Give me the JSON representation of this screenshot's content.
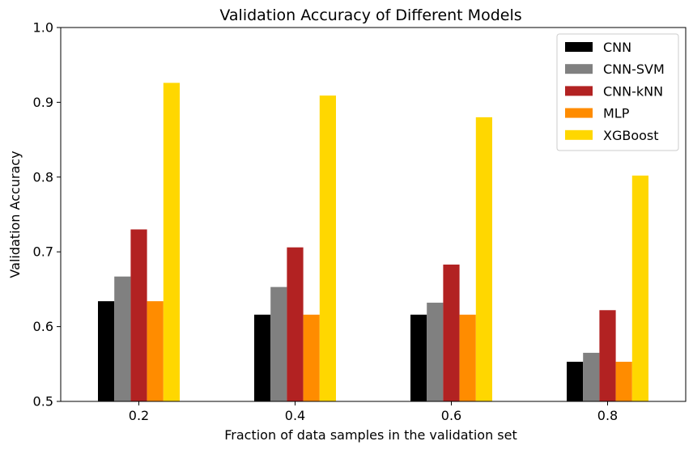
{
  "chart_data": {
    "type": "bar",
    "title": "Validation Accuracy of Different Models",
    "xlabel": "Fraction of data samples in the validation set",
    "ylabel": "Validation Accuracy",
    "categories": [
      "0.2",
      "0.4",
      "0.6",
      "0.8"
    ],
    "ylim": [
      0.5,
      1.0
    ],
    "yticks": [
      "0.5",
      "0.6",
      "0.7",
      "0.8",
      "0.9",
      "1.0"
    ],
    "grid": false,
    "legend_position": "top-right",
    "series": [
      {
        "name": "CNN",
        "color": "#000000",
        "values": [
          0.634,
          0.616,
          0.616,
          0.553
        ]
      },
      {
        "name": "CNN-SVM",
        "color": "#808080",
        "values": [
          0.667,
          0.653,
          0.632,
          0.565
        ]
      },
      {
        "name": "CNN-kNN",
        "color": "#b22222",
        "values": [
          0.73,
          0.706,
          0.683,
          0.622
        ]
      },
      {
        "name": "MLP",
        "color": "#ff8c00",
        "values": [
          0.634,
          0.616,
          0.616,
          0.553
        ]
      },
      {
        "name": "XGBoost",
        "color": "#ffd700",
        "values": [
          0.926,
          0.909,
          0.88,
          0.802
        ]
      }
    ]
  }
}
